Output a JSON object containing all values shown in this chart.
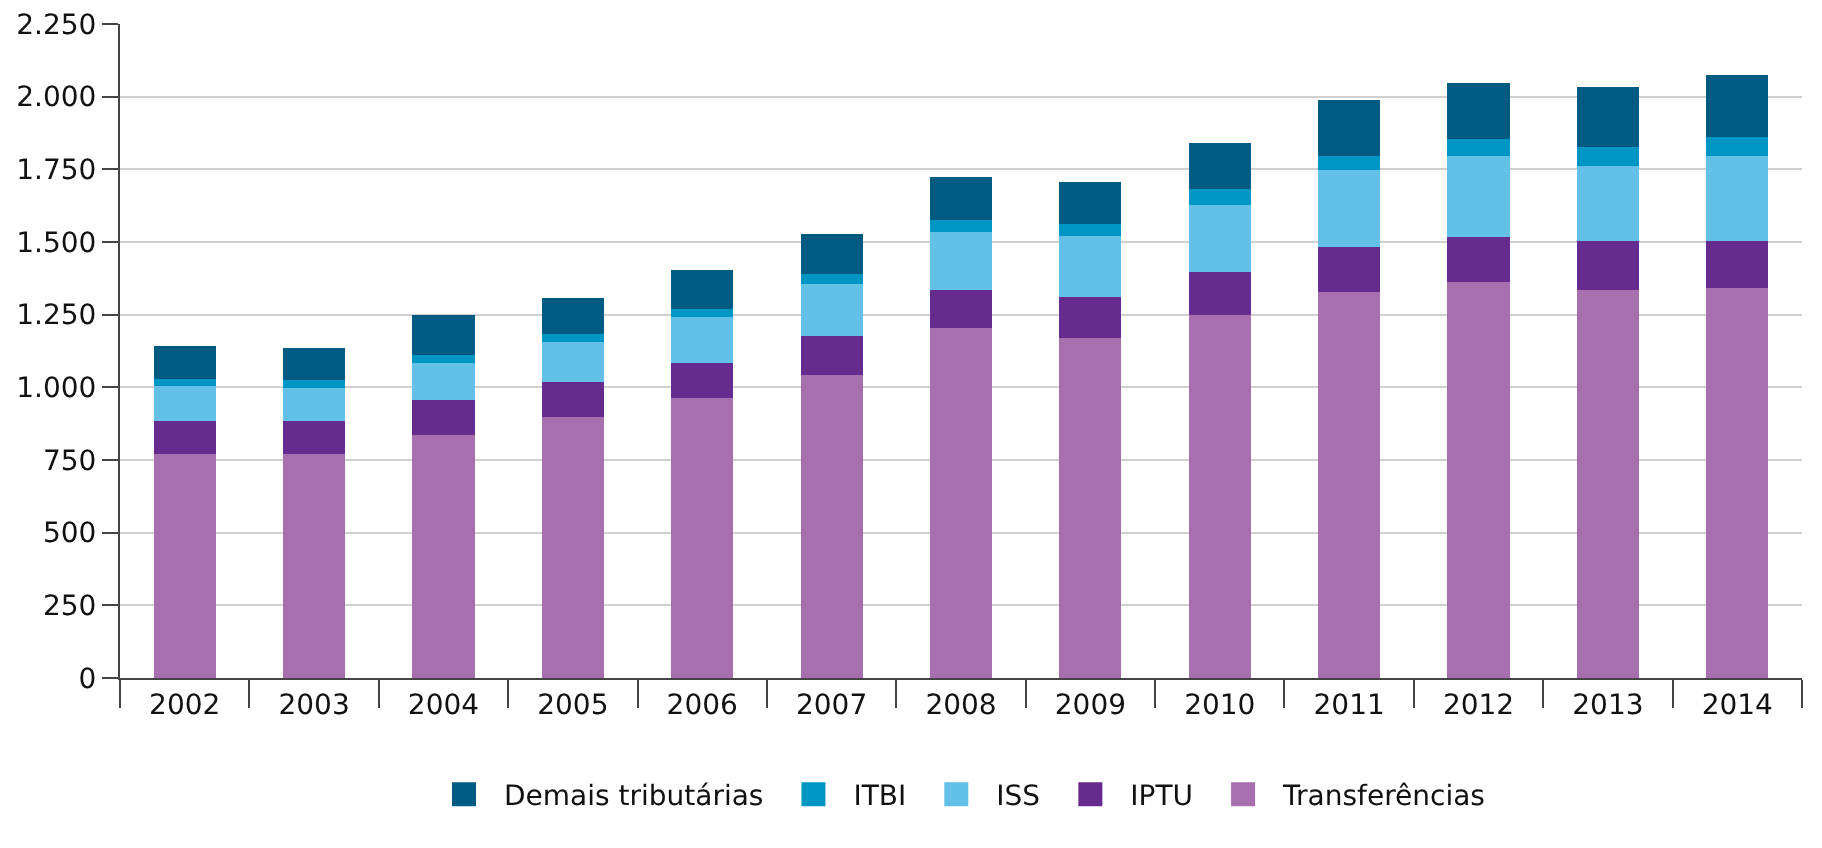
{
  "chart_data": {
    "type": "bar",
    "stacked": true,
    "categories": [
      "2002",
      "2003",
      "2004",
      "2005",
      "2006",
      "2007",
      "2008",
      "2009",
      "2010",
      "2011",
      "2012",
      "2013",
      "2014"
    ],
    "series": [
      {
        "name": "Transferências",
        "color": "#a86fae",
        "values": [
          771,
          771,
          837,
          897,
          964,
          1044,
          1203,
          1170,
          1250,
          1329,
          1363,
          1336,
          1343
        ]
      },
      {
        "name": "IPTU",
        "color": "#652b8f",
        "values": [
          113,
          113,
          120,
          120,
          119,
          133,
          133,
          140,
          146,
          153,
          153,
          166,
          159
        ]
      },
      {
        "name": "ISS",
        "color": "#63c0e6",
        "values": [
          120,
          113,
          126,
          140,
          160,
          179,
          199,
          212,
          233,
          266,
          279,
          259,
          293
        ]
      },
      {
        "name": "ITBI",
        "color": "#0096c4",
        "values": [
          26,
          27,
          27,
          26,
          27,
          33,
          40,
          40,
          53,
          47,
          60,
          67,
          66
        ]
      },
      {
        "name": "Demais tributárias",
        "color": "#005b82",
        "values": [
          113,
          113,
          140,
          126,
          133,
          140,
          147,
          146,
          159,
          193,
          192,
          206,
          213
        ]
      }
    ],
    "ylim": [
      0,
      2250
    ],
    "yticks": [
      0,
      250,
      500,
      {
        "value": 750,
        "label": "750"
      },
      {
        "value": 1000,
        "label": "1.000"
      },
      {
        "value": 1250,
        "label": "1.250"
      },
      {
        "value": 1500,
        "label": "1.500"
      },
      {
        "value": 1750,
        "label": "1.750"
      },
      {
        "value": 2000,
        "label": "2.000"
      },
      {
        "value": 2250,
        "label": "2.250"
      }
    ],
    "grid": "y",
    "legend": "bottom"
  }
}
